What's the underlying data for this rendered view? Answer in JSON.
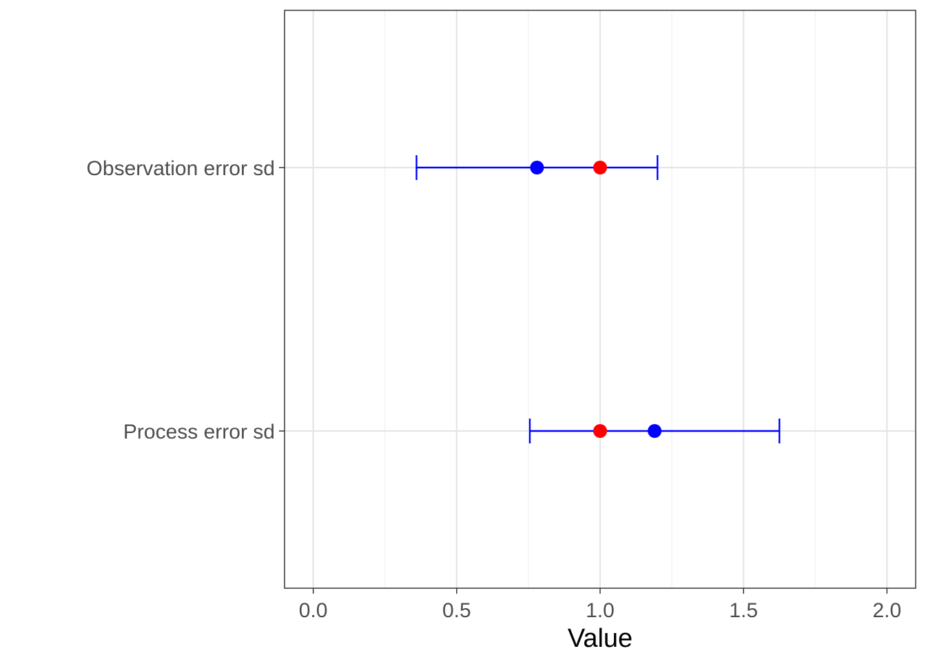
{
  "chart_data": {
    "type": "scatter",
    "title": "",
    "xlabel": "Value",
    "ylabel": "",
    "xlim": [
      -0.1,
      2.1
    ],
    "x_ticks": [
      0.0,
      0.5,
      1.0,
      1.5,
      2.0
    ],
    "x_tick_labels": [
      "0.0",
      "0.5",
      "1.0",
      "1.5",
      "2.0"
    ],
    "x_minor_ticks": [
      0.25,
      0.75,
      1.25,
      1.75
    ],
    "categories": [
      "Observation error sd",
      "Process error sd"
    ],
    "grid": true,
    "legend": "none",
    "series": [
      {
        "color": "#0000ff",
        "kind": "point-with-interval",
        "points": [
          {
            "category": "Observation error sd",
            "value": 0.78,
            "lower": 0.36,
            "upper": 1.2
          },
          {
            "category": "Process error sd",
            "value": 1.19,
            "lower": 0.755,
            "upper": 1.625
          }
        ]
      },
      {
        "color": "#ff0000",
        "kind": "point",
        "points": [
          {
            "category": "Observation error sd",
            "value": 1.0
          },
          {
            "category": "Process error sd",
            "value": 1.0
          }
        ]
      }
    ],
    "colors": {
      "panel_border": "#333333",
      "grid_major": "#e5e5e5",
      "grid_minor": "#f0f0f0",
      "tick_text": "#4d4d4d"
    }
  }
}
